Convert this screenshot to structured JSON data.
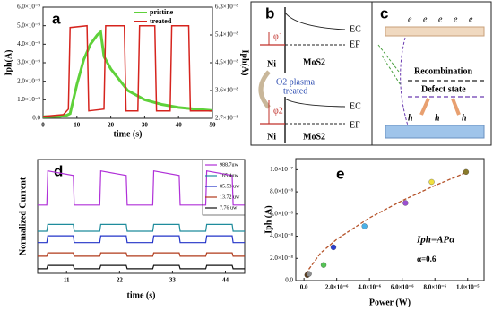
{
  "chart_data": [
    {
      "type": "line",
      "panel_label": "a",
      "xlabel": "time (s)",
      "ylabel": "Iph(A)",
      "y2label": "Iph(A)",
      "xlim": [
        0,
        50
      ],
      "xticks": [
        0,
        10,
        20,
        30,
        40,
        50
      ],
      "ylim": [
        0,
        6e-09
      ],
      "yticks": [
        {
          "value": 0,
          "label": "0.0"
        },
        {
          "value": 1e-09,
          "label": "1.0×10⁻⁹"
        },
        {
          "value": 2e-09,
          "label": "2.0×10⁻⁹"
        },
        {
          "value": 3e-09,
          "label": "3.0×10⁻⁹"
        },
        {
          "value": 4e-09,
          "label": "4.0×10⁻⁹"
        },
        {
          "value": 5e-09,
          "label": "5.0×10⁻⁹"
        },
        {
          "value": 6e-09,
          "label": "6.0×10⁻⁹"
        }
      ],
      "y2lim": [
        2.7e-08,
        6.3e-08
      ],
      "y2ticks": [
        {
          "value": 2.7e-08,
          "label": "2.7×10⁻⁸"
        },
        {
          "value": 3.6e-08,
          "label": "3.6×10⁻⁸"
        },
        {
          "value": 4.5e-08,
          "label": "4.5×10⁻⁸"
        },
        {
          "value": 5.4e-08,
          "label": "5.4×10⁻⁸"
        },
        {
          "value": 6.3e-08,
          "label": "6.3×10⁻⁸"
        }
      ],
      "series": [
        {
          "name": "pristine",
          "color": "#5fd13a",
          "axis": "y2",
          "width": 3,
          "x": [
            0,
            5,
            7,
            8,
            10,
            12,
            14,
            16,
            17,
            18,
            20,
            25,
            30,
            35,
            40,
            45,
            50
          ],
          "values": [
            2.75e-08,
            2.76e-08,
            2.8e-08,
            2.85e-08,
            3.8e-08,
            4.6e-08,
            5.1e-08,
            5.4e-08,
            5.5e-08,
            4.7e-08,
            4.3e-08,
            3.6e-08,
            3.3e-08,
            3.15e-08,
            3.05e-08,
            3e-08,
            2.95e-08
          ]
        },
        {
          "name": "treated",
          "color": "#d6241e",
          "width": 1.5,
          "x": [
            0,
            6,
            7.5,
            8,
            13,
            13.5,
            18,
            18.5,
            24,
            24.5,
            28,
            28.5,
            33,
            33.5,
            37.5,
            38,
            43,
            43.5,
            48,
            50
          ],
          "values": [
            1e-10,
            2e-10,
            5e-10,
            4.9e-09,
            5e-09,
            4e-10,
            5e-10,
            5e-09,
            5e-09,
            4e-10,
            4e-10,
            5e-09,
            5e-09,
            4e-10,
            4e-10,
            5e-09,
            5e-09,
            4e-10,
            4e-10,
            4e-10
          ]
        }
      ]
    },
    {
      "type": "line",
      "panel_label": "d",
      "xlabel": "time (s)",
      "ylabel": "Normalized Current",
      "xlim": [
        5,
        48
      ],
      "xticks": [
        11,
        22,
        33,
        44
      ],
      "ylim": [
        0,
        1
      ],
      "x": [
        5,
        6.9,
        7.1,
        12.4,
        12.6,
        17.9,
        18.1,
        23.4,
        23.6,
        28.9,
        29.1,
        34.4,
        34.6,
        39.9,
        40.1,
        45.4,
        45.6,
        48
      ],
      "series": [
        {
          "name": "988.7uw",
          "color": "#b030d8",
          "values": [
            0.6,
            0.6,
            0.9,
            0.86,
            0.6,
            0.6,
            0.9,
            0.86,
            0.6,
            0.6,
            0.9,
            0.86,
            0.6,
            0.6,
            0.9,
            0.86,
            0.6,
            0.6
          ]
        },
        {
          "name": "165.4uw",
          "color": "#1f8c9c",
          "values": [
            0.37,
            0.37,
            0.43,
            0.43,
            0.37,
            0.37,
            0.43,
            0.43,
            0.37,
            0.37,
            0.43,
            0.43,
            0.37,
            0.37,
            0.43,
            0.43,
            0.37,
            0.37
          ]
        },
        {
          "name": "85.53 uw",
          "color": "#2233c8",
          "values": [
            0.27,
            0.27,
            0.33,
            0.33,
            0.27,
            0.27,
            0.33,
            0.33,
            0.27,
            0.27,
            0.33,
            0.33,
            0.27,
            0.27,
            0.33,
            0.33,
            0.27,
            0.27
          ]
        },
        {
          "name": "13.72 uw",
          "color": "#b03a1a",
          "values": [
            0.15,
            0.15,
            0.18,
            0.18,
            0.15,
            0.15,
            0.18,
            0.18,
            0.15,
            0.15,
            0.18,
            0.18,
            0.15,
            0.15,
            0.18,
            0.18,
            0.15,
            0.15
          ]
        },
        {
          "name": "7.76 uw",
          "color": "#111111",
          "values": [
            0.04,
            0.04,
            0.07,
            0.07,
            0.04,
            0.04,
            0.07,
            0.07,
            0.04,
            0.04,
            0.07,
            0.07,
            0.04,
            0.04,
            0.07,
            0.07,
            0.04,
            0.04
          ]
        }
      ]
    },
    {
      "type": "scatter",
      "panel_label": "e",
      "xlabel": "Power (W)",
      "ylabel": "Iph (A)",
      "annotations": [
        "Iph=APα",
        "α=0.6"
      ],
      "xlim": [
        -5e-07,
        1.1e-05
      ],
      "xticks": [
        {
          "value": 0,
          "label": "0.0"
        },
        {
          "value": 2e-06,
          "label": "2.0×10⁻⁶"
        },
        {
          "value": 4e-06,
          "label": "4.0×10⁻⁶"
        },
        {
          "value": 6e-06,
          "label": "6.0×10⁻⁶"
        },
        {
          "value": 8e-06,
          "label": "8.0×10⁻⁶"
        },
        {
          "value": 1e-05,
          "label": "1.0×10⁻⁵"
        }
      ],
      "ylim": [
        0,
        1.1e-07
      ],
      "yticks": [
        {
          "value": 0,
          "label": "0.0"
        },
        {
          "value": 2e-08,
          "label": "2.0×10⁻⁸"
        },
        {
          "value": 4e-08,
          "label": "4.0×10⁻⁸"
        },
        {
          "value": 6e-08,
          "label": "6.0×10⁻⁸"
        },
        {
          "value": 8e-08,
          "label": "8.0×10⁻⁸"
        },
        {
          "value": 1e-07,
          "label": "1.0×10⁻⁷"
        }
      ],
      "x": [
        2e-07,
        3e-07,
        1.2e-06,
        1.8e-06,
        3.7e-06,
        6.2e-06,
        7.8e-06,
        9.9e-06
      ],
      "values": [
        5e-09,
        6e-09,
        1.4e-08,
        3e-08,
        4.9e-08,
        7e-08,
        8.9e-08,
        9.8e-08
      ],
      "colors": [
        "#5a3a1a",
        "#8c8c8c",
        "#55c455",
        "#2b3fd0",
        "#4ab0e8",
        "#9b4fd1",
        "#f0e040",
        "#8a7a2a"
      ],
      "fit": {
        "color": "#b5532a",
        "x": [
          1e-07,
          1e-06,
          2e-06,
          4e-06,
          6e-06,
          8e-06,
          1e-05
        ],
        "values": [
          6.2e-09,
          2.46e-08,
          3.73e-08,
          5.65e-08,
          7.21e-08,
          8.57e-08,
          9.8e-08
        ]
      }
    }
  ],
  "diagram_b": {
    "panel_label": "b",
    "phi1": "φ1",
    "ec_top": "EC",
    "ef_top": "EF",
    "ni_top": "Ni",
    "mos2_top": "MoS2",
    "treatment": [
      "O2 plasma",
      "treated"
    ],
    "phi2": "φ2",
    "ec_bottom": "EC",
    "ef_bottom": "EF",
    "ni_bottom": "Ni",
    "mos2_bottom": "MoS2"
  },
  "diagram_c": {
    "panel_label": "c",
    "electrons": [
      "e",
      "e",
      "e",
      "e",
      "e"
    ],
    "recombination": "Recombination",
    "defect_state": "Defect state",
    "holes": [
      "h",
      "h",
      "h"
    ]
  }
}
